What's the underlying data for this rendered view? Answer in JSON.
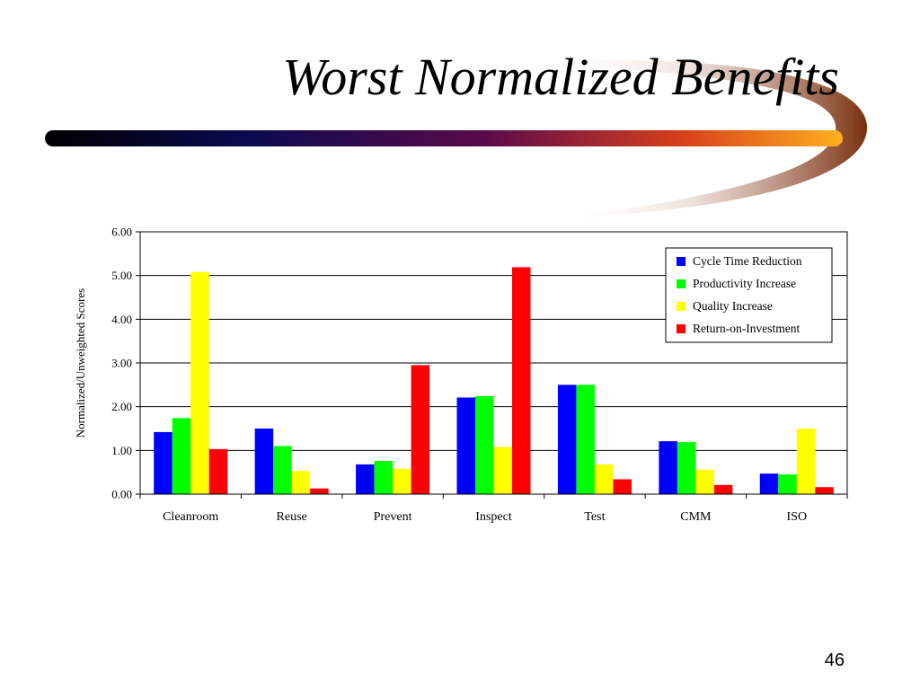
{
  "slide": {
    "title": "Worst Normalized Benefits",
    "page_number": "46"
  },
  "colors": {
    "cycle_time": "#0000ff",
    "productivity": "#00ff00",
    "quality": "#ffff00",
    "roi": "#ff0000"
  },
  "chart_data": {
    "type": "bar",
    "title": "",
    "ylabel": "Normalized/Unweighted Scores",
    "xlabel": "",
    "ylim": [
      0,
      6
    ],
    "yticks": [
      "0.00",
      "1.00",
      "2.00",
      "3.00",
      "4.00",
      "5.00",
      "6.00"
    ],
    "grid": true,
    "legend_position": "top-right",
    "categories": [
      "Cleanroom",
      "Reuse",
      "Prevent",
      "Inspect",
      "Test",
      "CMM",
      "ISO"
    ],
    "series": [
      {
        "name": "Cycle Time Reduction",
        "color": "#0000ff",
        "values": [
          1.42,
          1.5,
          0.68,
          2.21,
          2.5,
          1.21,
          0.47
        ]
      },
      {
        "name": "Productivity Increase",
        "color": "#00ff00",
        "values": [
          1.74,
          1.1,
          0.76,
          2.24,
          2.5,
          1.19,
          0.45
        ]
      },
      {
        "name": "Quality Increase",
        "color": "#ffff00",
        "values": [
          5.08,
          0.53,
          0.58,
          1.08,
          0.68,
          0.56,
          1.5
        ]
      },
      {
        "name": "Return-on-Investment",
        "color": "#ff0000",
        "values": [
          1.03,
          0.13,
          2.95,
          5.19,
          0.34,
          0.21,
          0.16
        ]
      }
    ]
  }
}
